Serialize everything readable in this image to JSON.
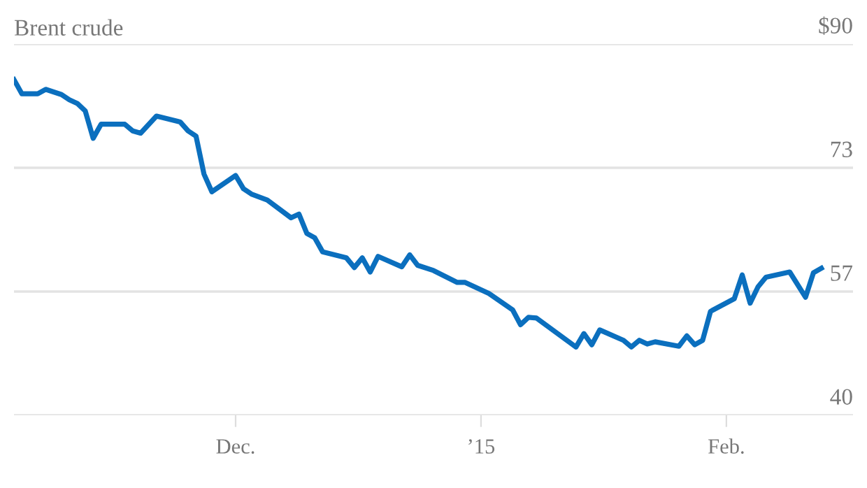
{
  "chart_data": {
    "type": "line",
    "title": "Brent crude",
    "x": [
      "2014-11-03",
      "2014-11-04",
      "2014-11-06",
      "2014-11-07",
      "2014-11-09",
      "2014-11-10",
      "2014-11-11",
      "2014-11-12",
      "2014-11-13",
      "2014-11-14",
      "2014-11-17",
      "2014-11-18",
      "2014-11-19",
      "2014-11-21",
      "2014-11-24",
      "2014-11-25",
      "2014-11-26",
      "2014-11-27",
      "2014-11-28",
      "2014-12-01",
      "2014-12-02",
      "2014-12-03",
      "2014-12-05",
      "2014-12-08",
      "2014-12-09",
      "2014-12-10",
      "2014-12-11",
      "2014-12-12",
      "2014-12-15",
      "2014-12-16",
      "2014-12-17",
      "2014-12-18",
      "2014-12-19",
      "2014-12-22",
      "2014-12-23",
      "2014-12-24",
      "2014-12-26",
      "2014-12-29",
      "2014-12-30",
      "2015-01-02",
      "2015-01-05",
      "2015-01-06",
      "2015-01-07",
      "2015-01-08",
      "2015-01-13",
      "2015-01-14",
      "2015-01-15",
      "2015-01-16",
      "2015-01-19",
      "2015-01-20",
      "2015-01-21",
      "2015-01-22",
      "2015-01-23",
      "2015-01-26",
      "2015-01-27",
      "2015-01-28",
      "2015-01-29",
      "2015-01-30",
      "2015-02-02",
      "2015-02-03",
      "2015-02-04",
      "2015-02-05",
      "2015-02-06",
      "2015-02-09",
      "2015-02-11",
      "2015-02-12",
      "2015-02-13"
    ],
    "series": [
      {
        "color": "#0b6fbe",
        "values": [
          85.2,
          83.3,
          83.3,
          83.9,
          83.2,
          82.5,
          82.0,
          81.0,
          77.3,
          79.2,
          79.2,
          78.3,
          78.0,
          80.3,
          79.5,
          78.3,
          77.6,
          72.5,
          70.1,
          72.3,
          70.5,
          69.8,
          69.0,
          66.6,
          67.1,
          64.5,
          63.9,
          62.0,
          61.2,
          59.9,
          61.2,
          59.3,
          61.4,
          60.0,
          61.6,
          60.2,
          59.5,
          57.9,
          57.9,
          56.4,
          54.2,
          52.2,
          53.2,
          53.1,
          49.2,
          51.0,
          49.5,
          51.5,
          50.1,
          49.2,
          50.1,
          49.6,
          49.9,
          49.3,
          50.7,
          49.5,
          50.1,
          54.0,
          55.7,
          58.9,
          55.1,
          57.3,
          58.6,
          59.3,
          55.9,
          59.2,
          59.8
        ]
      }
    ],
    "xlim": [
      "2014-11-03",
      "2015-02-17"
    ],
    "xticks": [
      {
        "value": "2014-12-01",
        "label": "Dec."
      },
      {
        "value": "2015-01-01",
        "label": "’15"
      },
      {
        "value": "2015-02-01",
        "label": "Feb."
      }
    ],
    "ylim": [
      40,
      90
    ],
    "yticks": [
      40,
      {
        "value": 56.67,
        "label": "57"
      },
      {
        "value": 73.33,
        "label": "73"
      },
      {
        "value": 90,
        "label": "$90"
      }
    ],
    "grid": "y",
    "legend": false,
    "marker": "none",
    "line_style": "solid"
  }
}
